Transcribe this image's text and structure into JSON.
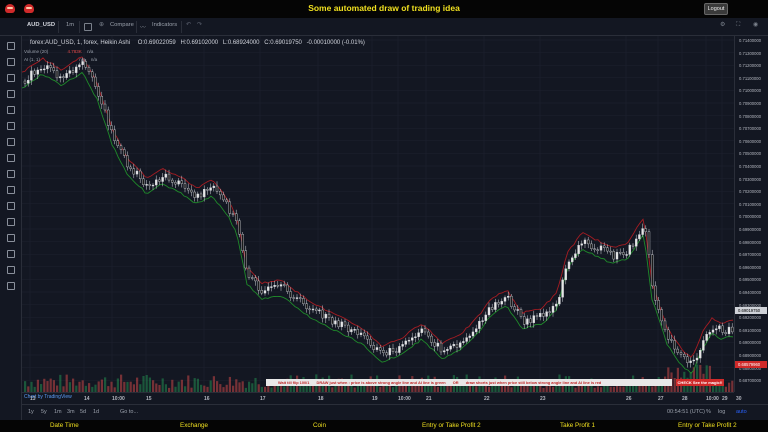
{
  "header": {
    "title": "Some automated draw of trading idea",
    "logout_label": "Logout"
  },
  "toolbar": {
    "symbol": "AUD_USD",
    "interval": "1m",
    "compare_label": "Compare",
    "indicators_label": "Indicators"
  },
  "legend": {
    "series": "forex:AUD_USD, 1, forex, Heikin Ashi",
    "open": "O:0.69022059",
    "high": "H:0.69102000",
    "low": "L:0.68924000",
    "close": "C:0.69019750",
    "change": "-0.00010000 (-0.01%)",
    "volume_label": "Volume (20)",
    "volume_value": "4.783K",
    "volume_na": "n/a",
    "ai_label": "AI (1, 1)",
    "ai_value_1": "n/a",
    "ai_value_2": "n/a"
  },
  "price_axis": [
    "0.71400000",
    "0.71300000",
    "0.71200000",
    "0.71100000",
    "0.71000000",
    "0.70900000",
    "0.70800000",
    "0.70700000",
    "0.70600000",
    "0.70500000",
    "0.70400000",
    "0.70300000",
    "0.70200000",
    "0.70100000",
    "0.70000000",
    "0.69900000",
    "0.69800000",
    "0.69700000",
    "0.69600000",
    "0.69500000",
    "0.69400000",
    "0.69300000",
    "0.69200000",
    "0.69100000",
    "0.69000000",
    "0.68900000",
    "0.68800000",
    "0.68700000"
  ],
  "price_tags": {
    "current": "0.69019750",
    "signal": "0.68579960"
  },
  "time_axis": [
    "13",
    "14",
    "10:00",
    "15",
    "16",
    "17",
    "18",
    "19",
    "10:00",
    "21",
    "22",
    "23",
    "26",
    "27",
    "28",
    "10:00",
    "29",
    "30"
  ],
  "bottom_bar": {
    "ranges": [
      "1y",
      "5y",
      "1m",
      "3m",
      "5d",
      "1d"
    ],
    "goto": "Go to...",
    "clock": "00:54:51 (UTC)",
    "pct": "%",
    "log": "log",
    "auto": "auto"
  },
  "watermark": "Chart by TradingView",
  "signal": {
    "text_1": "Wait till flip 100/1",
    "text_2": "DRAW just when : price is above strong angle line and AI line is green",
    "text_3": "OR",
    "text_4": "draw shorts just when price still below strong angle line and AI line is red",
    "button": "CHECK See the magic!!"
  },
  "footer": {
    "labels": [
      "Date Time",
      "Exchange",
      "Coin",
      "Entry or Take Profit 2",
      "Take Profit 1",
      "Entry or Take Profit 2"
    ]
  },
  "colors": {
    "background": "#131722",
    "up": "#e6e6e6",
    "down": "#1a1a1a",
    "ai_green": "#1f8a2a",
    "ai_red": "#a51c22",
    "title_yellow": "#f0e020"
  }
}
